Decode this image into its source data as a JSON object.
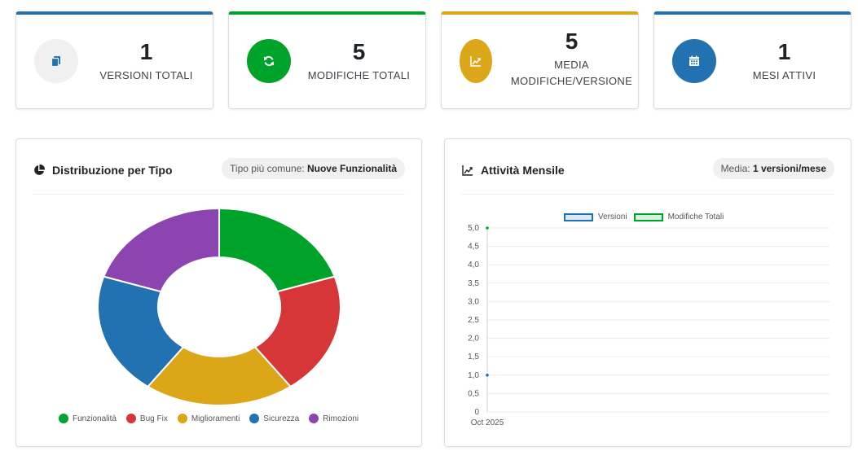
{
  "stats": [
    {
      "value": "1",
      "label_line1": "VERSIONI TOTALI",
      "label_line2": "",
      "color": "#f0f0f1",
      "icon_color": "#2271b1",
      "icon": "copy-icon",
      "top_color": "#2271b1"
    },
    {
      "value": "5",
      "label_line1": "MODIFICHE TOTALI",
      "label_line2": "",
      "color": "#00a32a",
      "icon_color": "#ffffff",
      "icon": "refresh-icon",
      "top_color": "#00a32a"
    },
    {
      "value": "5",
      "label_line1": "MEDIA",
      "label_line2": "MODIFICHE/VERSIONE",
      "color": "#dba617",
      "icon_color": "#ffffff",
      "icon": "chart-line-icon",
      "top_color": "#dba617"
    },
    {
      "value": "1",
      "label_line1": "MESI ATTIVI",
      "label_line2": "",
      "color": "#2271b1",
      "icon_color": "#ffffff",
      "icon": "calendar-icon",
      "top_color": "#2271b1"
    }
  ],
  "distribution_panel": {
    "title": "Distribuzione per Tipo",
    "badge_label": "Tipo più comune:",
    "badge_value": "Nuove Funzionalità"
  },
  "activity_panel": {
    "title": "Attività Mensile",
    "badge_label": "Media:",
    "badge_value": "1 versioni/mese"
  },
  "chart_data": [
    {
      "type": "pie",
      "title": "",
      "categories": [
        "Funzionalità",
        "Bug Fix",
        "Miglioramenti",
        "Sicurezza",
        "Rimozioni"
      ],
      "values": [
        1,
        1,
        1,
        1,
        1
      ],
      "colors": [
        "#00a32a",
        "#d63638",
        "#dba617",
        "#2271b1",
        "#8c44b0"
      ],
      "donut": true,
      "legend": "bottom"
    },
    {
      "type": "line",
      "title": "",
      "categories": [
        "Oct 2025"
      ],
      "series": [
        {
          "name": "Versioni",
          "values": [
            1
          ],
          "color": "#2271b1",
          "fill": "#dbe8f5"
        },
        {
          "name": "Modifiche Totali",
          "values": [
            5
          ],
          "color": "#00a32a",
          "fill": "#d7f2dd"
        }
      ],
      "yticks": [
        "0",
        "0,5",
        "1,0",
        "1,5",
        "2,0",
        "2,5",
        "3,0",
        "3,5",
        "4,0",
        "4,5",
        "5,0"
      ],
      "ylim": [
        0,
        5
      ],
      "grid": true,
      "legend": "top"
    }
  ]
}
